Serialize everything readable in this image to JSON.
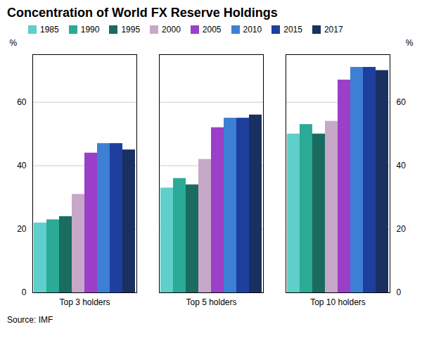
{
  "chart_data": {
    "type": "bar",
    "title": "Concentration of World FX Reserve Holdings",
    "source": "Source:   IMF",
    "categories": [
      "Top 3 holders",
      "Top 5 holders",
      "Top 10 holders"
    ],
    "series": [
      {
        "name": "1985",
        "color": "#5ECFCA",
        "values": [
          22,
          33,
          50
        ]
      },
      {
        "name": "1990",
        "color": "#2BAA96",
        "values": [
          23,
          36,
          53
        ]
      },
      {
        "name": "1995",
        "color": "#1A6B60",
        "values": [
          24,
          34,
          50
        ]
      },
      {
        "name": "2000",
        "color": "#C8A8C8",
        "values": [
          31,
          42,
          54
        ]
      },
      {
        "name": "2005",
        "color": "#9B3FC8",
        "values": [
          44,
          52,
          67
        ]
      },
      {
        "name": "2010",
        "color": "#3D7FD4",
        "values": [
          47,
          55,
          71
        ]
      },
      {
        "name": "2015",
        "color": "#1F3F9F",
        "values": [
          47,
          55,
          71
        ]
      },
      {
        "name": "2017",
        "color": "#1A3060",
        "values": [
          45,
          56,
          70
        ]
      }
    ],
    "ylabel": "%",
    "y2label": "%",
    "ylim": [
      0,
      75
    ],
    "yticks": [
      0,
      20,
      40,
      60
    ],
    "y2lim": [
      0,
      75
    ],
    "y2ticks": [
      0,
      20,
      40,
      60
    ],
    "grid": true,
    "legend": "top"
  }
}
